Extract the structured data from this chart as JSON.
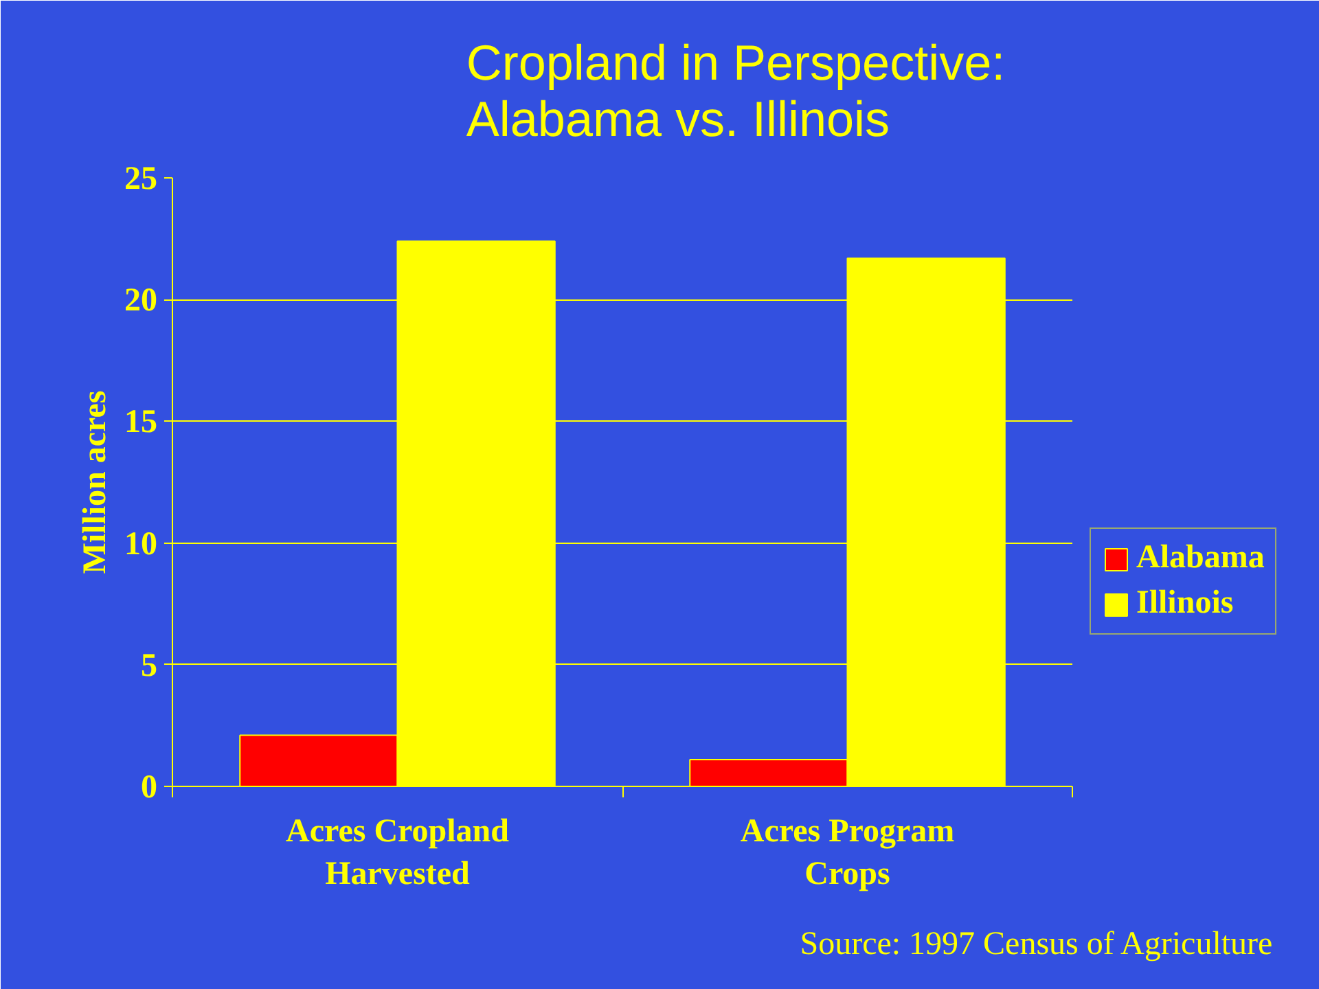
{
  "chart_data": {
    "type": "bar",
    "title": "Cropland in Perspective:\nAlabama vs. Illinois",
    "ylabel": "Million acres",
    "categories": [
      "Acres Cropland\nHarvested",
      "Acres Program\nCrops"
    ],
    "series": [
      {
        "name": "Alabama",
        "color": "#ff0000",
        "values": [
          2.1,
          1.1
        ]
      },
      {
        "name": "Illinois",
        "color": "#ffff00",
        "values": [
          22.4,
          21.7
        ]
      }
    ],
    "ylim": [
      0,
      25
    ],
    "yticks": [
      0,
      5,
      10,
      15,
      20,
      25
    ],
    "grid": "y",
    "legend": "right",
    "annotations": [
      "Source:  1997 Census of Agriculture"
    ]
  }
}
